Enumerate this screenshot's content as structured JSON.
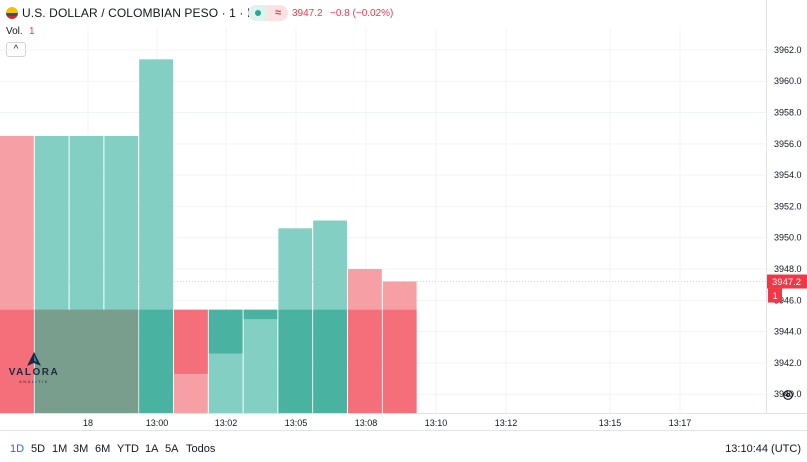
{
  "header": {
    "symbol": "U.S. DOLLAR / COLOMBIAN PESO · 1 · ICE",
    "delay_glyph": "≈",
    "last_price": "3947.2",
    "change": "−0.8 (−0.02%)"
  },
  "volume": {
    "label": "Vol.",
    "value": "1",
    "collapse_glyph": "^"
  },
  "logo": {
    "name": "VALORA",
    "tagline": "ANALITIK"
  },
  "price_axis": {
    "ticks": [
      "3962.0",
      "3960.0",
      "3958.0",
      "3956.0",
      "3954.0",
      "3952.0",
      "3950.0",
      "3948.0",
      "3946.0",
      "3944.0",
      "3942.0",
      "3940.0"
    ],
    "current_price_label": "3947.2",
    "volume_label": "1"
  },
  "time_axis": {
    "labels": [
      "18",
      "13:00",
      "13:02",
      "13:05",
      "13:08",
      "13:10",
      "13:12",
      "13:15",
      "13:17"
    ]
  },
  "colors": {
    "up": "#26a69a",
    "down": "#ef5350",
    "accent": "#2962ff"
  },
  "chart": {
    "type": "candles",
    "price_min": 3938.8,
    "price_max": 3963.4,
    "volume_baseline_price": 3945.4,
    "bars": [
      {
        "open": 3956.5,
        "close": 3938.8,
        "dir": "down",
        "vol_top": 3938.8
      },
      {
        "open": 3938.8,
        "close": 3956.5,
        "dir": "up",
        "vol_top": 3938.8
      },
      {
        "open": 3938.8,
        "close": 3956.5,
        "dir": "up",
        "vol_top": 3938.8
      },
      {
        "open": 3938.8,
        "close": 3956.5,
        "dir": "up",
        "vol_top": 3938.8
      },
      {
        "open": 3938.8,
        "close": 3961.4,
        "dir": "up",
        "vol_top": 3938.8
      },
      {
        "open": 3945.4,
        "close": 3938.8,
        "dir": "down",
        "vol_top": 3941.3
      },
      {
        "open": 3938.8,
        "close": 3945.4,
        "dir": "up",
        "vol_top": 3942.6
      },
      {
        "open": 3938.8,
        "close": 3945.4,
        "dir": "up",
        "vol_top": 3944.8
      },
      {
        "open": 3938.8,
        "close": 3950.6,
        "dir": "up",
        "vol_top": 3938.8
      },
      {
        "open": 3938.8,
        "close": 3951.1,
        "dir": "up",
        "vol_top": 3938.8
      },
      {
        "open": 3948.0,
        "close": 3938.8,
        "dir": "down",
        "vol_top": 3938.8
      },
      {
        "open": 3947.2,
        "close": 3938.8,
        "dir": "down",
        "vol_top": 3938.8
      }
    ]
  },
  "ranges": [
    "1D",
    "5D",
    "1M",
    "3M",
    "6M",
    "YTD",
    "1A",
    "5A",
    "Todos"
  ],
  "active_range": "1D",
  "clock": "13:10:44 (UTC)"
}
